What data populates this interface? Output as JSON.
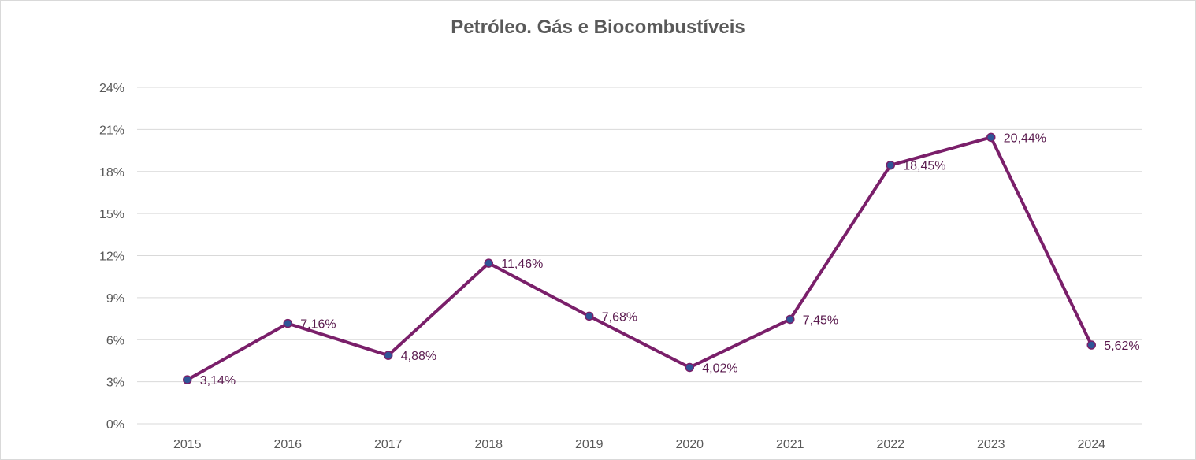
{
  "chart_data": {
    "type": "line",
    "title": "Petróleo. Gás e Biocombustíveis",
    "categories": [
      "2015",
      "2016",
      "2017",
      "2018",
      "2019",
      "2020",
      "2021",
      "2022",
      "2023",
      "2024"
    ],
    "series": [
      {
        "name": "Petróleo. Gás e Biocombustíveis",
        "values": [
          3.14,
          7.16,
          4.88,
          11.46,
          7.68,
          4.02,
          7.45,
          18.45,
          20.44,
          5.62
        ],
        "labels": [
          "3,14%",
          "7,16%",
          "4,88%",
          "11,46%",
          "7,68%",
          "4,02%",
          "7,45%",
          "18,45%",
          "20,44%",
          "5,62%"
        ]
      }
    ],
    "y_ticks": [
      0,
      3,
      6,
      9,
      12,
      15,
      18,
      21,
      24
    ],
    "y_tick_labels": [
      "0%",
      "3%",
      "6%",
      "9%",
      "12%",
      "15%",
      "18%",
      "21%",
      "24%"
    ],
    "ylim": [
      0,
      24
    ],
    "xlabel": "",
    "ylabel": "",
    "grid": true,
    "legend": "none",
    "colors": {
      "line": "#7a1f6a",
      "marker_fill": "#2f5597",
      "marker_stroke": "#7a1f6a",
      "label": "#5a1a4e",
      "grid": "#d9d9d9",
      "axis_text": "#595959"
    }
  }
}
